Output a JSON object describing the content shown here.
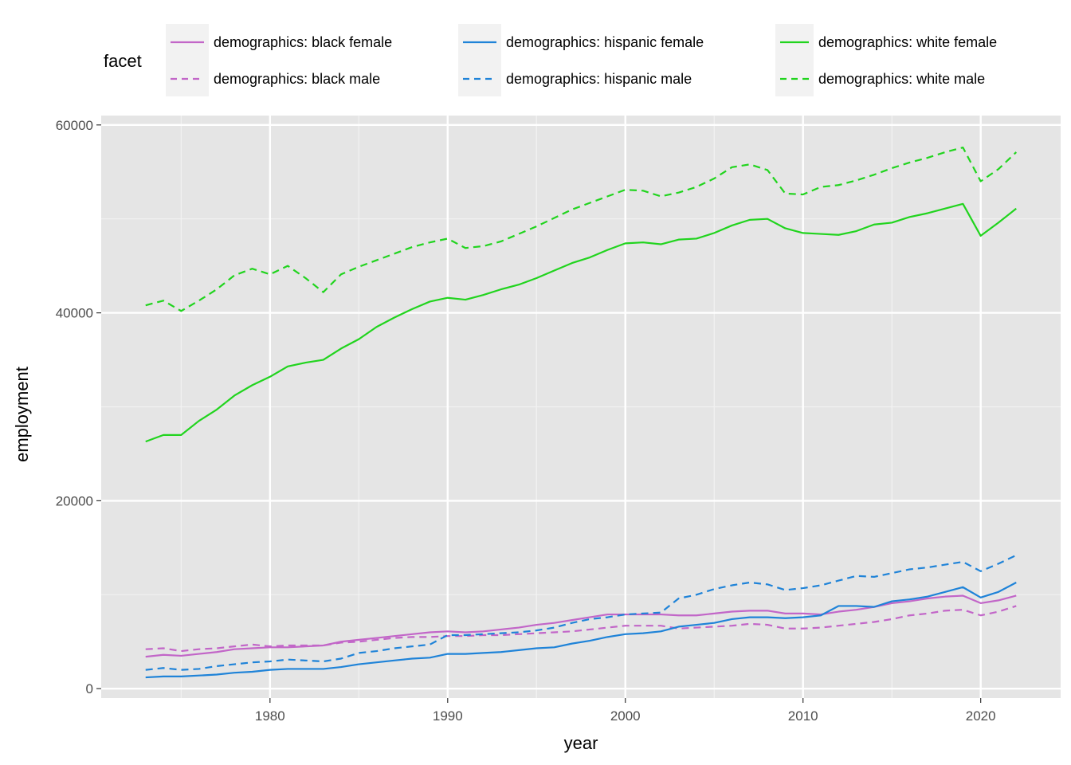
{
  "chart_data": {
    "type": "line",
    "xlabel": "year",
    "ylabel": "employment",
    "xlim": [
      1970.5,
      2024.5
    ],
    "ylim": [
      -1000,
      61000
    ],
    "x_ticks": [
      1980,
      1990,
      2000,
      2010,
      2020
    ],
    "y_ticks": [
      0,
      20000,
      40000,
      60000
    ],
    "x_tick_labels": [
      "1980",
      "1990",
      "2000",
      "2010",
      "2020"
    ],
    "y_tick_labels": [
      "0",
      "20000",
      "40000",
      "60000"
    ],
    "grid": true,
    "legend": {
      "title": "facet",
      "position": "top",
      "entries": [
        {
          "label": "demographics: black female",
          "color": "#C266C8",
          "dash": "solid"
        },
        {
          "label": "demographics: black male",
          "color": "#C266C8",
          "dash": "dashed"
        },
        {
          "label": "demographics: hispanic female",
          "color": "#1F83D8",
          "dash": "solid"
        },
        {
          "label": "demographics: hispanic male",
          "color": "#1F83D8",
          "dash": "dashed"
        },
        {
          "label": "demographics: white female",
          "color": "#21D41E",
          "dash": "solid"
        },
        {
          "label": "demographics: white male",
          "color": "#21D41E",
          "dash": "dashed"
        }
      ]
    },
    "x": [
      1973,
      1974,
      1975,
      1976,
      1977,
      1978,
      1979,
      1980,
      1981,
      1982,
      1983,
      1984,
      1985,
      1986,
      1987,
      1988,
      1989,
      1990,
      1991,
      1992,
      1993,
      1994,
      1995,
      1996,
      1997,
      1998,
      1999,
      2000,
      2001,
      2002,
      2003,
      2004,
      2005,
      2006,
      2007,
      2008,
      2009,
      2010,
      2011,
      2012,
      2013,
      2014,
      2015,
      2016,
      2017,
      2018,
      2019,
      2020,
      2021,
      2022
    ],
    "series": [
      {
        "name": "demographics: black female",
        "color": "#C266C8",
        "dash": "solid",
        "values": [
          3400,
          3600,
          3500,
          3700,
          3900,
          4200,
          4300,
          4400,
          4400,
          4500,
          4600,
          5000,
          5200,
          5400,
          5600,
          5800,
          6000,
          6100,
          6000,
          6100,
          6300,
          6500,
          6800,
          7000,
          7300,
          7600,
          7900,
          7900,
          7900,
          7900,
          7800,
          7800,
          8000,
          8200,
          8300,
          8300,
          8000,
          8000,
          7900,
          8200,
          8400,
          8700,
          9100,
          9300,
          9600,
          9800,
          9900,
          9100,
          9400,
          9900
        ]
      },
      {
        "name": "demographics: black male",
        "color": "#C266C8",
        "dash": "dashed",
        "values": [
          4200,
          4300,
          4000,
          4200,
          4300,
          4500,
          4700,
          4500,
          4600,
          4600,
          4600,
          4900,
          5000,
          5200,
          5400,
          5500,
          5500,
          5600,
          5600,
          5700,
          5700,
          5800,
          5900,
          6000,
          6100,
          6300,
          6500,
          6700,
          6700,
          6700,
          6400,
          6500,
          6600,
          6700,
          6900,
          6800,
          6400,
          6400,
          6500,
          6700,
          6900,
          7100,
          7400,
          7800,
          8000,
          8300,
          8400,
          7800,
          8200,
          8800
        ]
      },
      {
        "name": "demographics: hispanic female",
        "color": "#1F83D8",
        "dash": "solid",
        "values": [
          1200,
          1300,
          1300,
          1400,
          1500,
          1700,
          1800,
          2000,
          2100,
          2100,
          2100,
          2300,
          2600,
          2800,
          3000,
          3200,
          3300,
          3700,
          3700,
          3800,
          3900,
          4100,
          4300,
          4400,
          4800,
          5100,
          5500,
          5800,
          5900,
          6100,
          6600,
          6800,
          7000,
          7400,
          7600,
          7600,
          7500,
          7600,
          7800,
          8800,
          8800,
          8700,
          9300,
          9500,
          9800,
          10300,
          10800,
          9700,
          10300,
          11300
        ]
      },
      {
        "name": "demographics: hispanic male",
        "color": "#1F83D8",
        "dash": "dashed",
        "values": [
          2000,
          2200,
          2000,
          2100,
          2400,
          2600,
          2800,
          2900,
          3100,
          3000,
          2900,
          3200,
          3800,
          4000,
          4300,
          4500,
          4700,
          5700,
          5700,
          5800,
          5900,
          6000,
          6200,
          6500,
          7000,
          7400,
          7600,
          7900,
          8000,
          8100,
          9600,
          10000,
          10600,
          11000,
          11300,
          11100,
          10500,
          10700,
          11000,
          11500,
          12000,
          11900,
          12300,
          12700,
          12900,
          13200,
          13500,
          12500,
          13300,
          14200
        ]
      },
      {
        "name": "demographics: white female",
        "color": "#21D41E",
        "dash": "solid",
        "values": [
          26300,
          27000,
          27000,
          28500,
          29700,
          31200,
          32300,
          33200,
          34300,
          34700,
          35000,
          36200,
          37200,
          38500,
          39500,
          40400,
          41200,
          41600,
          41400,
          41900,
          42500,
          43000,
          43700,
          44500,
          45300,
          45900,
          46700,
          47400,
          47500,
          47300,
          47800,
          47900,
          48500,
          49300,
          49900,
          50000,
          49000,
          48500,
          48400,
          48300,
          48700,
          49400,
          49600,
          50200,
          50600,
          51100,
          51600,
          48200,
          49600,
          51100
        ]
      },
      {
        "name": "demographics: white male",
        "color": "#21D41E",
        "dash": "dashed",
        "values": [
          40800,
          41300,
          40200,
          41300,
          42500,
          44000,
          44700,
          44100,
          45000,
          43700,
          42200,
          44100,
          44900,
          45600,
          46300,
          47000,
          47500,
          47900,
          46900,
          47100,
          47600,
          48400,
          49200,
          50100,
          51000,
          51700,
          52400,
          53100,
          53000,
          52400,
          52800,
          53400,
          54300,
          55500,
          55800,
          55200,
          52700,
          52600,
          53400,
          53600,
          54100,
          54700,
          55400,
          56000,
          56500,
          57100,
          57600,
          54000,
          55300,
          57100
        ]
      }
    ]
  }
}
